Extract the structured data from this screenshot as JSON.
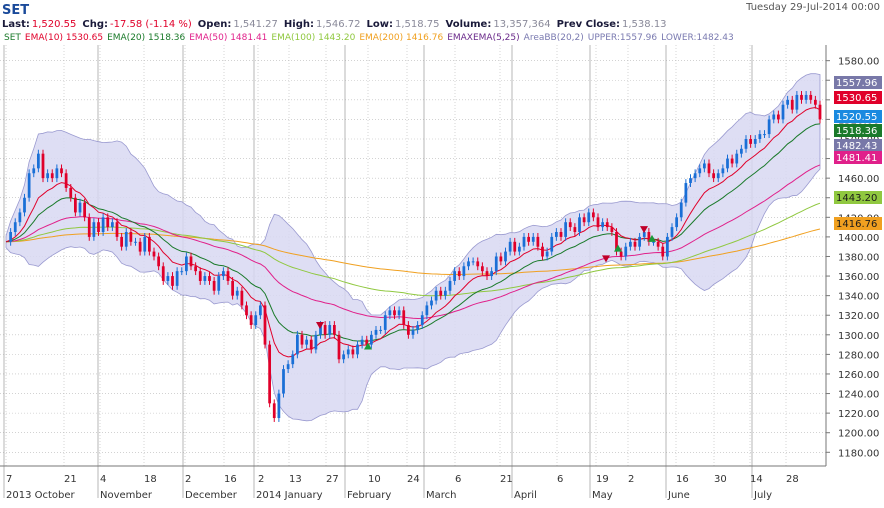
{
  "header": {
    "symbol": "SET",
    "datetime": "Tuesday 29-Jul-2014 00:00",
    "quote": [
      {
        "label": "Last:",
        "value": "1,520.55"
      },
      {
        "label": "Chg:",
        "value": "-17.58 (-1.14 %)"
      },
      {
        "label": "Open:",
        "value": "1,541.27"
      },
      {
        "label": "High:",
        "value": "1,546.72"
      },
      {
        "label": "Low:",
        "value": "1,518.75"
      },
      {
        "label": "Volume:",
        "value": "13,357,364"
      },
      {
        "label": "Prev Close:",
        "value": "1,538.13"
      }
    ]
  },
  "legend": {
    "symbol": "SET",
    "items": [
      {
        "name": "EMA(10)",
        "value": "1530.65",
        "color": "#e0002a"
      },
      {
        "name": "EMA(20)",
        "value": "1518.36",
        "color": "#1a7a2a"
      },
      {
        "name": "EMA(50)",
        "value": "1481.41",
        "color": "#e0208a"
      },
      {
        "name": "EMA(100)",
        "value": "1443.20",
        "color": "#90c840"
      },
      {
        "name": "EMA(200)",
        "value": "1416.76",
        "color": "#f0a020"
      },
      {
        "name": "EMAXEMA(5,25)",
        "value": "",
        "color": "#6a2a8a"
      },
      {
        "name": "AreaBB(20,2)",
        "value": "",
        "color": "#7a7ab0"
      }
    ],
    "bb_upper": "UPPER:1557.96",
    "bb_lower": "LOWER:1482.43"
  },
  "chart_data": {
    "type": "candlestick",
    "y_range": [
      1166,
      1596
    ],
    "y_ticks": [
      1180,
      1200,
      1220,
      1240,
      1260,
      1280,
      1300,
      1320,
      1340,
      1360,
      1380,
      1400,
      1420,
      1440,
      1460,
      1480,
      1500,
      1520,
      1540,
      1560,
      1580
    ],
    "day_ticks": [
      "7",
      "21",
      "4",
      "18",
      "2",
      "16",
      "2",
      "13",
      "27",
      "10",
      "24",
      "6",
      "21",
      "6",
      "19",
      "2",
      "16",
      "30",
      "14",
      "28"
    ],
    "month_labels": [
      "2013 October",
      "November",
      "December",
      "2014 January",
      "February",
      "March",
      "April",
      "May",
      "June",
      "July"
    ],
    "colors": {
      "up": "#1a6fd6",
      "down": "#e0002a",
      "bb_fill": "#d8d8f2",
      "bb_edge": "#9a9ad0",
      "grid": "#b8b8b8",
      "tag_bb": "#7878a8"
    },
    "closes": [
      1395,
      1405,
      1415,
      1425,
      1440,
      1465,
      1470,
      1485,
      1460,
      1465,
      1460,
      1470,
      1465,
      1450,
      1440,
      1425,
      1435,
      1420,
      1400,
      1415,
      1405,
      1420,
      1410,
      1415,
      1400,
      1390,
      1405,
      1395,
      1395,
      1385,
      1400,
      1385,
      1380,
      1370,
      1355,
      1360,
      1350,
      1365,
      1365,
      1380,
      1370,
      1365,
      1355,
      1360,
      1355,
      1345,
      1360,
      1365,
      1355,
      1340,
      1345,
      1330,
      1320,
      1310,
      1320,
      1330,
      1290,
      1230,
      1215,
      1240,
      1265,
      1270,
      1280,
      1300,
      1290,
      1295,
      1285,
      1300,
      1310,
      1300,
      1310,
      1300,
      1275,
      1280,
      1285,
      1280,
      1290,
      1295,
      1290,
      1300,
      1305,
      1305,
      1320,
      1325,
      1320,
      1325,
      1310,
      1300,
      1305,
      1310,
      1320,
      1330,
      1335,
      1345,
      1340,
      1345,
      1355,
      1365,
      1360,
      1370,
      1375,
      1375,
      1370,
      1365,
      1360,
      1365,
      1380,
      1375,
      1385,
      1395,
      1385,
      1390,
      1400,
      1395,
      1400,
      1390,
      1380,
      1385,
      1400,
      1405,
      1400,
      1415,
      1410,
      1405,
      1420,
      1415,
      1425,
      1420,
      1410,
      1415,
      1410,
      1405,
      1385,
      1380,
      1390,
      1395,
      1390,
      1400,
      1405,
      1395,
      1395,
      1390,
      1380,
      1400,
      1410,
      1420,
      1435,
      1455,
      1460,
      1465,
      1470,
      1475,
      1465,
      1460,
      1465,
      1470,
      1480,
      1475,
      1485,
      1490,
      1500,
      1495,
      1500,
      1505,
      1505,
      1520,
      1525,
      1520,
      1535,
      1540,
      1530,
      1545,
      1540,
      1545,
      1540,
      1535,
      1520
    ]
  }
}
